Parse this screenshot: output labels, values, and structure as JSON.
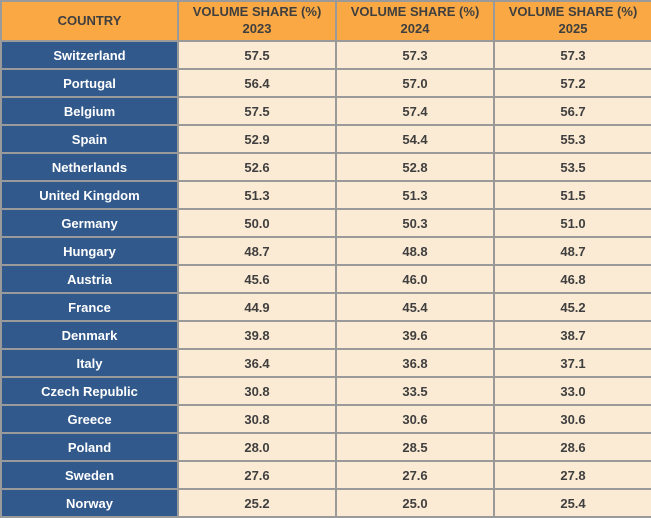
{
  "colors": {
    "header_bg": "#F9A843",
    "header_text": "#3F3F3F",
    "country_bg": "#32598C",
    "country_text": "#FFFFFF",
    "cell_bg": "#FCEBD4",
    "value_text": "#3F3F3F",
    "border": "#9A9A9A"
  },
  "table": {
    "header": {
      "country_label": "COUNTRY",
      "volume_label": "VOLUME SHARE (%)",
      "years": [
        "2023",
        "2024",
        "2025"
      ]
    },
    "rows": [
      {
        "country": "Switzerland",
        "values": [
          "57.5",
          "57.3",
          "57.3"
        ]
      },
      {
        "country": "Portugal",
        "values": [
          "56.4",
          "57.0",
          "57.2"
        ]
      },
      {
        "country": "Belgium",
        "values": [
          "57.5",
          "57.4",
          "56.7"
        ]
      },
      {
        "country": "Spain",
        "values": [
          "52.9",
          "54.4",
          "55.3"
        ]
      },
      {
        "country": "Netherlands",
        "values": [
          "52.6",
          "52.8",
          "53.5"
        ]
      },
      {
        "country": "United Kingdom",
        "values": [
          "51.3",
          "51.3",
          "51.5"
        ]
      },
      {
        "country": "Germany",
        "values": [
          "50.0",
          "50.3",
          "51.0"
        ]
      },
      {
        "country": "Hungary",
        "values": [
          "48.7",
          "48.8",
          "48.7"
        ]
      },
      {
        "country": "Austria",
        "values": [
          "45.6",
          "46.0",
          "46.8"
        ]
      },
      {
        "country": "France",
        "values": [
          "44.9",
          "45.4",
          "45.2"
        ]
      },
      {
        "country": "Denmark",
        "values": [
          "39.8",
          "39.6",
          "38.7"
        ]
      },
      {
        "country": "Italy",
        "values": [
          "36.4",
          "36.8",
          "37.1"
        ]
      },
      {
        "country": "Czech Republic",
        "values": [
          "30.8",
          "33.5",
          "33.0"
        ]
      },
      {
        "country": "Greece",
        "values": [
          "30.8",
          "30.6",
          "30.6"
        ]
      },
      {
        "country": "Poland",
        "values": [
          "28.0",
          "28.5",
          "28.6"
        ]
      },
      {
        "country": "Sweden",
        "values": [
          "27.6",
          "27.6",
          "27.8"
        ]
      },
      {
        "country": "Norway",
        "values": [
          "25.2",
          "25.0",
          "25.4"
        ]
      }
    ]
  },
  "chart_data": {
    "type": "table",
    "title": "",
    "columns": [
      "COUNTRY",
      "VOLUME SHARE (%) 2023",
      "VOLUME SHARE (%) 2024",
      "VOLUME SHARE (%) 2025"
    ],
    "rows": [
      [
        "Switzerland",
        57.5,
        57.3,
        57.3
      ],
      [
        "Portugal",
        56.4,
        57.0,
        57.2
      ],
      [
        "Belgium",
        57.5,
        57.4,
        56.7
      ],
      [
        "Spain",
        52.9,
        54.4,
        55.3
      ],
      [
        "Netherlands",
        52.6,
        52.8,
        53.5
      ],
      [
        "United Kingdom",
        51.3,
        51.3,
        51.5
      ],
      [
        "Germany",
        50.0,
        50.3,
        51.0
      ],
      [
        "Hungary",
        48.7,
        48.8,
        48.7
      ],
      [
        "Austria",
        45.6,
        46.0,
        46.8
      ],
      [
        "France",
        44.9,
        45.4,
        45.2
      ],
      [
        "Denmark",
        39.8,
        39.6,
        38.7
      ],
      [
        "Italy",
        36.4,
        36.8,
        37.1
      ],
      [
        "Czech Republic",
        30.8,
        33.5,
        33.0
      ],
      [
        "Greece",
        30.8,
        30.6,
        30.6
      ],
      [
        "Poland",
        28.0,
        28.5,
        28.6
      ],
      [
        "Sweden",
        27.6,
        27.6,
        27.8
      ],
      [
        "Norway",
        25.2,
        25.0,
        25.4
      ]
    ]
  }
}
